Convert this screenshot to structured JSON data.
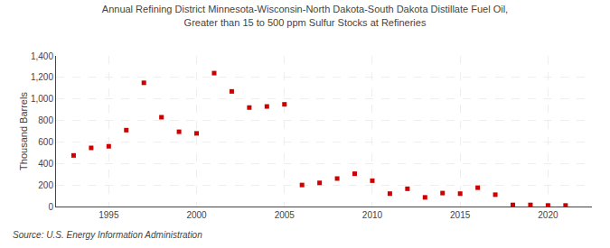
{
  "chart_data": {
    "type": "scatter",
    "title": "Annual Refining District Minnesota-Wisconsin-North Dakota-South Dakota Distillate Fuel Oil,\nGreater than 15 to 500 ppm Sulfur Stocks at Refineries",
    "ylabel": "Thousand Barrels",
    "annotations": [
      "Source: U.S. Energy Information Administration"
    ],
    "x": [
      1993,
      1994,
      1995,
      1996,
      1997,
      1998,
      1999,
      2000,
      2001,
      2002,
      2003,
      2004,
      2005,
      2006,
      2007,
      2008,
      2009,
      2010,
      2011,
      2012,
      2013,
      2014,
      2015,
      2016,
      2017,
      2018,
      2019,
      2020,
      2021
    ],
    "values": [
      475,
      545,
      560,
      710,
      1150,
      830,
      695,
      680,
      1240,
      1070,
      920,
      930,
      950,
      200,
      220,
      260,
      305,
      240,
      120,
      165,
      85,
      125,
      120,
      175,
      110,
      15,
      15,
      10,
      10
    ],
    "color": "#cc0000",
    "marker": "square",
    "xlim": [
      1992,
      2022.5
    ],
    "ylim": [
      0,
      1400
    ],
    "xticks": [
      1995,
      2000,
      2005,
      2010,
      2015,
      2020
    ],
    "yticks": [
      0,
      200,
      400,
      600,
      800,
      {
        "value": 1000,
        "label": "1,000"
      },
      {
        "value": 1200,
        "label": "1,200"
      },
      {
        "value": 1400,
        "label": "1,400"
      }
    ],
    "grid": true
  }
}
